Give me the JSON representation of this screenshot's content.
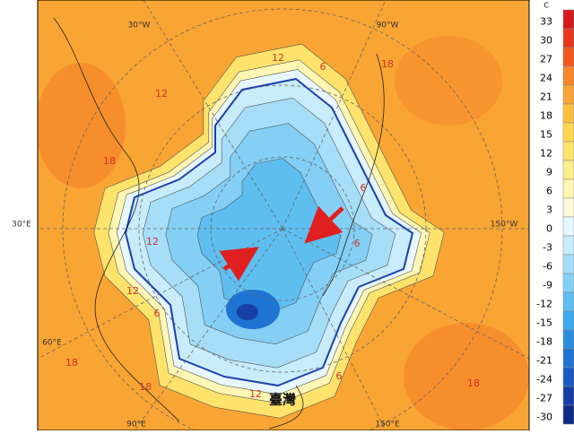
{
  "map": {
    "longitude_labels": [
      "30°W",
      "90°W",
      "150°W",
      "30°E",
      "60°E",
      "90°E",
      "150°E"
    ],
    "contour_labels": [
      "12",
      "6",
      "18",
      "12",
      "18",
      "6",
      "12",
      "6",
      "12",
      "6",
      "18",
      "18",
      "12",
      "6",
      "18"
    ],
    "place_label": "臺灣"
  },
  "colorbar": {
    "unit": "C",
    "levels": [
      33,
      30,
      27,
      24,
      21,
      18,
      15,
      12,
      9,
      6,
      3,
      0,
      -3,
      -6,
      -9,
      -12,
      -15,
      -18,
      -21,
      -24,
      -27,
      -30
    ],
    "colors": [
      "#d7191c",
      "#e8351d",
      "#f4581c",
      "#f7852a",
      "#f9a533",
      "#fbc040",
      "#fcd64f",
      "#fde26b",
      "#fcee8c",
      "#fff6b3",
      "#fffbd8",
      "#e8f7ff",
      "#c8ecfb",
      "#a6def8",
      "#83cff5",
      "#5fbef0",
      "#3ca9eb",
      "#2a8ee0",
      "#1f73d2",
      "#1a59c0",
      "#173fa6",
      "#122a85"
    ]
  }
}
